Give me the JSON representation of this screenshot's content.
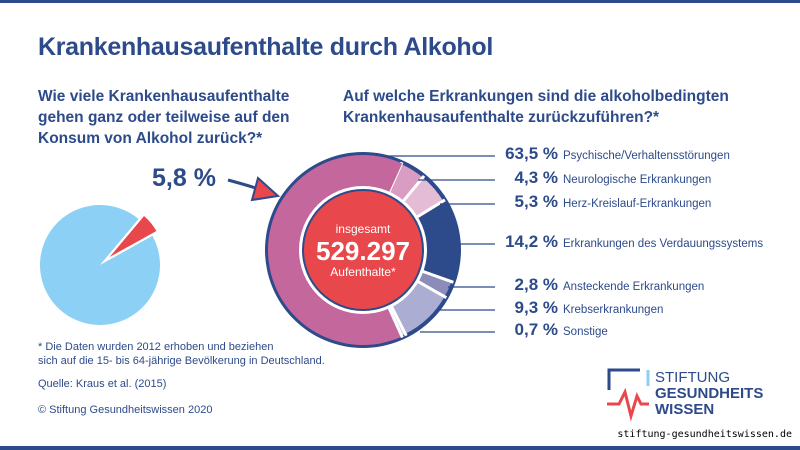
{
  "title": "Krankenhausaufenthalte durch Alkohol",
  "question_left": "Wie viele Krankenhausaufenthalte gehen ganz oder teilweise auf den Konsum von Alkohol zurück?*",
  "question_right": "Auf welche Erkrankungen sind die alkoholbedingten Krankenhausaufenthalte zurückzuführen?*",
  "center": {
    "top": "insgesamt",
    "value": "529.297",
    "bottom": "Aufenthalte*"
  },
  "footnote_1": "* Die Daten wurden 2012 erhoben und beziehen",
  "footnote_2": "sich auf die 15- bis 64-jährige Bevölkerung in Deutschland.",
  "source": "Quelle: Kraus et al. (2015)",
  "copyright": "© Stiftung Gesundheitswissen 2020",
  "logo": {
    "line1": "STIFTUNG",
    "line2": "GESUNDHEITS",
    "line3": "WISSEN"
  },
  "url": "stiftung-gesundheitswissen.de",
  "chart_data": [
    {
      "type": "pie",
      "label": "5,8 %",
      "values": [
        5.8,
        94.2
      ],
      "colors": [
        "#e8474c",
        "#8dd0f5"
      ]
    },
    {
      "type": "donut",
      "categories": [
        "Psychische/Verhaltensstörungen",
        "Neurologische Erkrankungen",
        "Herz-Kreislauf-Erkrankungen",
        "Erkrankungen des Verdauungssystems",
        "Ansteckende Erkrankungen",
        "Krebserkrankungen",
        "Sonstige"
      ],
      "values": [
        63.5,
        4.3,
        5.3,
        14.2,
        2.8,
        9.3,
        0.7
      ],
      "labels": [
        "63,5 %",
        "4,3 %",
        "5,3 %",
        "14,2 %",
        "2,8 %",
        "9,3 %",
        "0,7 %"
      ],
      "colors": [
        "#c3679c",
        "#d99cc2",
        "#e5bcd6",
        "#2d4a8a",
        "#8c8cba",
        "#abadd2",
        "#c9cde6"
      ]
    }
  ]
}
